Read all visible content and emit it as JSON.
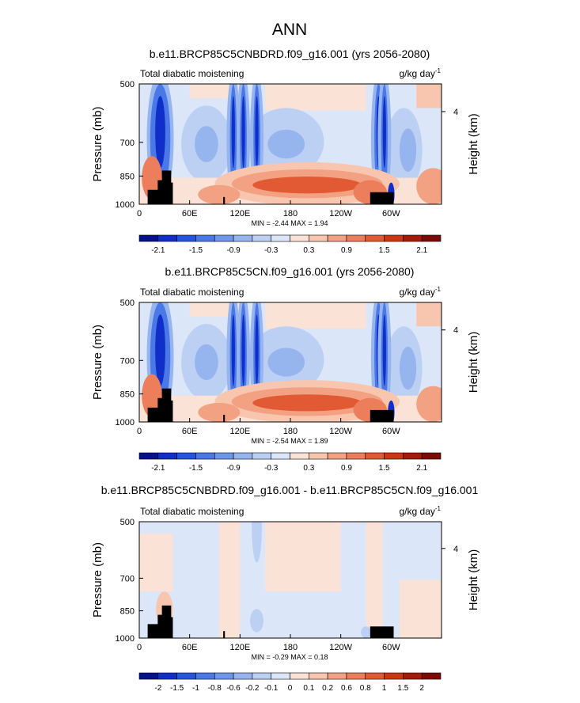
{
  "page_title": "ANN",
  "chart_data": [
    {
      "type": "heatmap",
      "title": "b.e11.BRCP85C5CNBDRD.f09_g16.001 (yrs 2056-2080)",
      "subtitle_left": "Total diabatic moistening",
      "units_base": "g/kg day",
      "units_exp": "-1",
      "ylabel": "Pressure (mb)",
      "ylabel_right": "Height (km)",
      "right_tick": "4",
      "yticks": [
        "500",
        "700",
        "850",
        "1000"
      ],
      "xticks": [
        "0",
        "60E",
        "120E",
        "180",
        "120W",
        "60W"
      ],
      "stats": "MIN =  -2.44   MAX =   1.94",
      "colorbar_labels": [
        "-2.1",
        "-1.5",
        "-0.9",
        "-0.3",
        "0.3",
        "0.9",
        "1.5",
        "2.1"
      ],
      "colorbar_colors": [
        "#06118c",
        "#0f2fc8",
        "#2555e0",
        "#4a78e6",
        "#6e97eb",
        "#96b5ef",
        "#bcd0f4",
        "#dbe6f8",
        "#fbe2d6",
        "#f8c6ae",
        "#f2a283",
        "#ec7e5b",
        "#e15a33",
        "#cc3613",
        "#a51a0a",
        "#7a0c05"
      ],
      "ylim": [
        1000,
        500
      ],
      "xlim": [
        0,
        360
      ]
    },
    {
      "type": "heatmap",
      "title": "b.e11.BRCP85C5CN.f09_g16.001 (yrs 2056-2080)",
      "subtitle_left": "Total diabatic moistening",
      "units_base": "g/kg day",
      "units_exp": "-1",
      "ylabel": "Pressure (mb)",
      "ylabel_right": "Height (km)",
      "right_tick": "4",
      "yticks": [
        "500",
        "700",
        "850",
        "1000"
      ],
      "xticks": [
        "0",
        "60E",
        "120E",
        "180",
        "120W",
        "60W"
      ],
      "stats": "MIN =  -2.54   MAX =   1.89",
      "colorbar_labels": [
        "-2.1",
        "-1.5",
        "-0.9",
        "-0.3",
        "0.3",
        "0.9",
        "1.5",
        "2.1"
      ],
      "colorbar_colors": [
        "#06118c",
        "#0f2fc8",
        "#2555e0",
        "#4a78e6",
        "#6e97eb",
        "#96b5ef",
        "#bcd0f4",
        "#dbe6f8",
        "#fbe2d6",
        "#f8c6ae",
        "#f2a283",
        "#ec7e5b",
        "#e15a33",
        "#cc3613",
        "#a51a0a",
        "#7a0c05"
      ],
      "ylim": [
        1000,
        500
      ],
      "xlim": [
        0,
        360
      ]
    },
    {
      "type": "heatmap",
      "title": "b.e11.BRCP85C5CNBDRD.f09_g16.001 - b.e11.BRCP85C5CN.f09_g16.001",
      "subtitle_left": "Total diabatic moistening",
      "units_base": "g/kg day",
      "units_exp": "-1",
      "ylabel": "Pressure (mb)",
      "ylabel_right": "Height (km)",
      "right_tick": "4",
      "yticks": [
        "500",
        "700",
        "850",
        "1000"
      ],
      "xticks": [
        "0",
        "60E",
        "120E",
        "180",
        "120W",
        "60W"
      ],
      "stats": "MIN =  -0.29   MAX =   0.18",
      "colorbar_labels": [
        "-2",
        "-1.5",
        "-1",
        "-0.8",
        "-0.6",
        "-0.2",
        "-0.1",
        "0",
        "0.1",
        "0.2",
        "0.6",
        "0.8",
        "1",
        "1.5",
        "2"
      ],
      "colorbar_colors": [
        "#06118c",
        "#0f2fc8",
        "#2555e0",
        "#4a78e6",
        "#6e97eb",
        "#96b5ef",
        "#bcd0f4",
        "#dbe6f8",
        "#fbe2d6",
        "#f8c6ae",
        "#f2a283",
        "#ec7e5b",
        "#e15a33",
        "#cc3613",
        "#a51a0a",
        "#7a0c05"
      ],
      "ylim": [
        1000,
        500
      ],
      "xlim": [
        0,
        360
      ]
    }
  ]
}
